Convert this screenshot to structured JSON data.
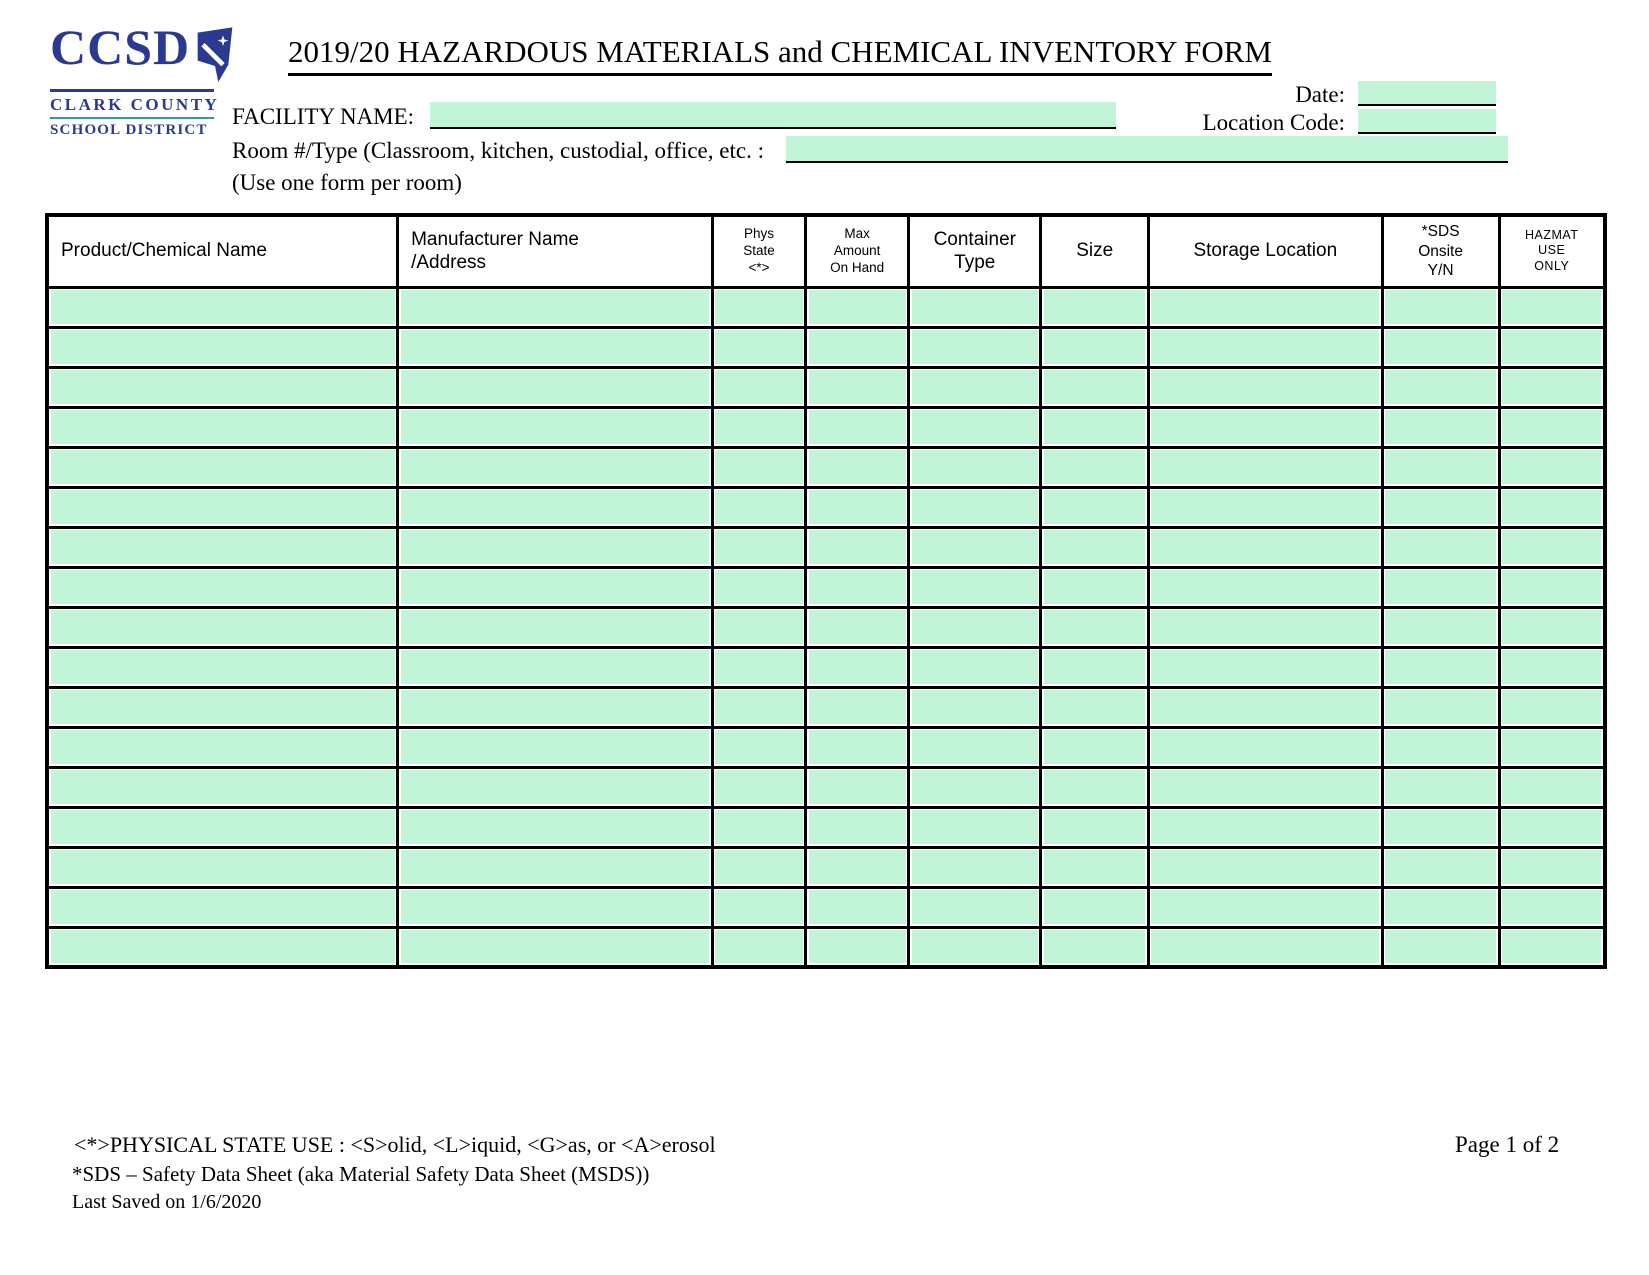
{
  "colors": {
    "navy": "#293A90",
    "teal": "#2E9E99",
    "cell_fill": "#C2F5D8"
  },
  "logo": {
    "acronym": "CCSD",
    "line1": "CLARK COUNTY",
    "line2": "SCHOOL DISTRICT"
  },
  "header": {
    "title": "2019/20 HAZARDOUS MATERIALS and CHEMICAL INVENTORY FORM",
    "date_label": "Date:",
    "date_value": "",
    "location_code_label": "Location Code:",
    "location_code_value": "",
    "facility_name_label": "FACILITY NAME:",
    "facility_name_value": "",
    "room_type_label": "Room #/Type (Classroom, kitchen, custodial, office, etc. :",
    "room_type_value": "",
    "form_note": "(Use one form per room)"
  },
  "table": {
    "columns": [
      "Product/Chemical Name",
      "Manufacturer Name\n/Address",
      "Phys\nState\n<*>",
      "Max\nAmount\nOn Hand",
      "Container\nType",
      "Size",
      "Storage Location",
      "*SDS\nOnsite\nY/N",
      "HAZMAT\nUSE\nONLY"
    ],
    "row_count": 17,
    "cell_values": []
  },
  "footer": {
    "physical_state_note": "<*>PHYSICAL STATE USE : <S>olid, <L>iquid,  <G>as, or  <A>erosol",
    "sds_note": "*SDS – Safety Data Sheet (aka Material Safety Data Sheet (MSDS))",
    "last_saved": "Last Saved on 1/6/2020",
    "page_label": "Page 1 of 2"
  }
}
